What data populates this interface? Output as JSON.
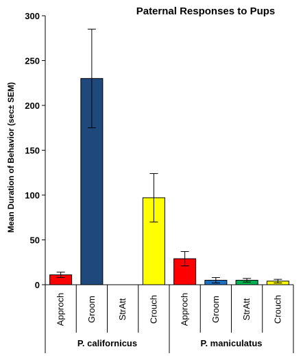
{
  "chart_data": {
    "type": "bar",
    "title": "Paternal Responses to Pups",
    "ylabel": "Mean Duration of Behavior (sec± SEM)",
    "xlabel": "",
    "ylim": [
      0,
      300
    ],
    "yticks": [
      0,
      50,
      100,
      150,
      200,
      250,
      300
    ],
    "grid": false,
    "legend": "none",
    "categories": [
      "Approch",
      "Groom",
      "StrAtt",
      "Crouch",
      "Approch",
      "Groom",
      "StrAtt",
      "Crouch"
    ],
    "groups": [
      {
        "label": "P. californicus",
        "start": 0,
        "count": 4
      },
      {
        "label": "P. maniculatus",
        "start": 4,
        "count": 4
      }
    ],
    "values": [
      11,
      230,
      0,
      97,
      29,
      5,
      5,
      4
    ],
    "errors": [
      3,
      55,
      0,
      27,
      8,
      3,
      2,
      2
    ],
    "colors": [
      "#ff0000",
      "#1f497d",
      "#ffffff",
      "#ffff00",
      "#ff0000",
      "#1f6fc1",
      "#00b050",
      "#ffff00"
    ]
  }
}
